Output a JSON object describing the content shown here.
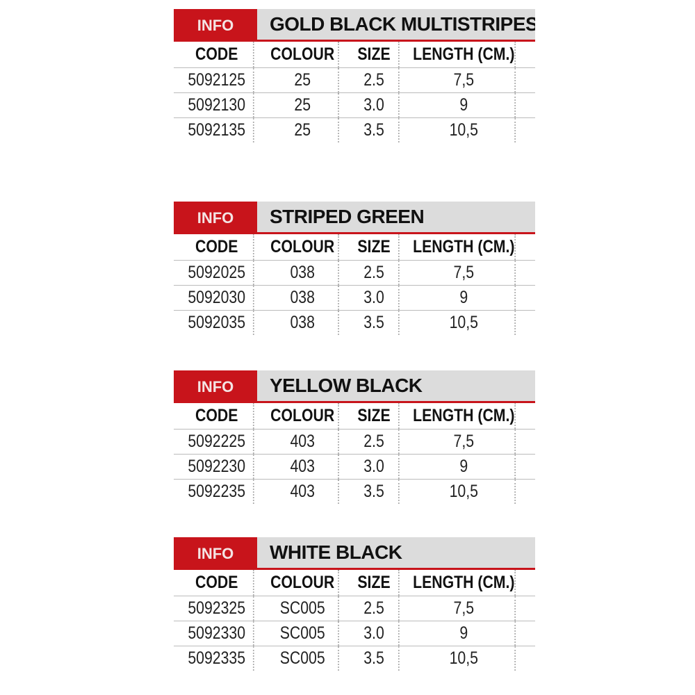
{
  "headers": [
    "CODE",
    "COLOUR",
    "SIZE",
    "LENGTH (CM.)"
  ],
  "info_label": "INFO",
  "accent_color": "#c8141b",
  "tables": [
    {
      "title": "GOLD BLACK MULTISTRIPES",
      "rows": [
        [
          "5092125",
          "25",
          "2.5",
          "7,5"
        ],
        [
          "5092130",
          "25",
          "3.0",
          "9"
        ],
        [
          "5092135",
          "25",
          "3.5",
          "10,5"
        ]
      ]
    },
    {
      "title": "STRIPED GREEN",
      "rows": [
        [
          "5092025",
          "038",
          "2.5",
          "7,5"
        ],
        [
          "5092030",
          "038",
          "3.0",
          "9"
        ],
        [
          "5092035",
          "038",
          "3.5",
          "10,5"
        ]
      ]
    },
    {
      "title": "YELLOW BLACK",
      "rows": [
        [
          "5092225",
          "403",
          "2.5",
          "7,5"
        ],
        [
          "5092230",
          "403",
          "3.0",
          "9"
        ],
        [
          "5092235",
          "403",
          "3.5",
          "10,5"
        ]
      ]
    },
    {
      "title": "WHITE BLACK",
      "rows": [
        [
          "5092325",
          "SC005",
          "2.5",
          "7,5"
        ],
        [
          "5092330",
          "SC005",
          "3.0",
          "9"
        ],
        [
          "5092335",
          "SC005",
          "3.5",
          "10,5"
        ]
      ]
    }
  ]
}
